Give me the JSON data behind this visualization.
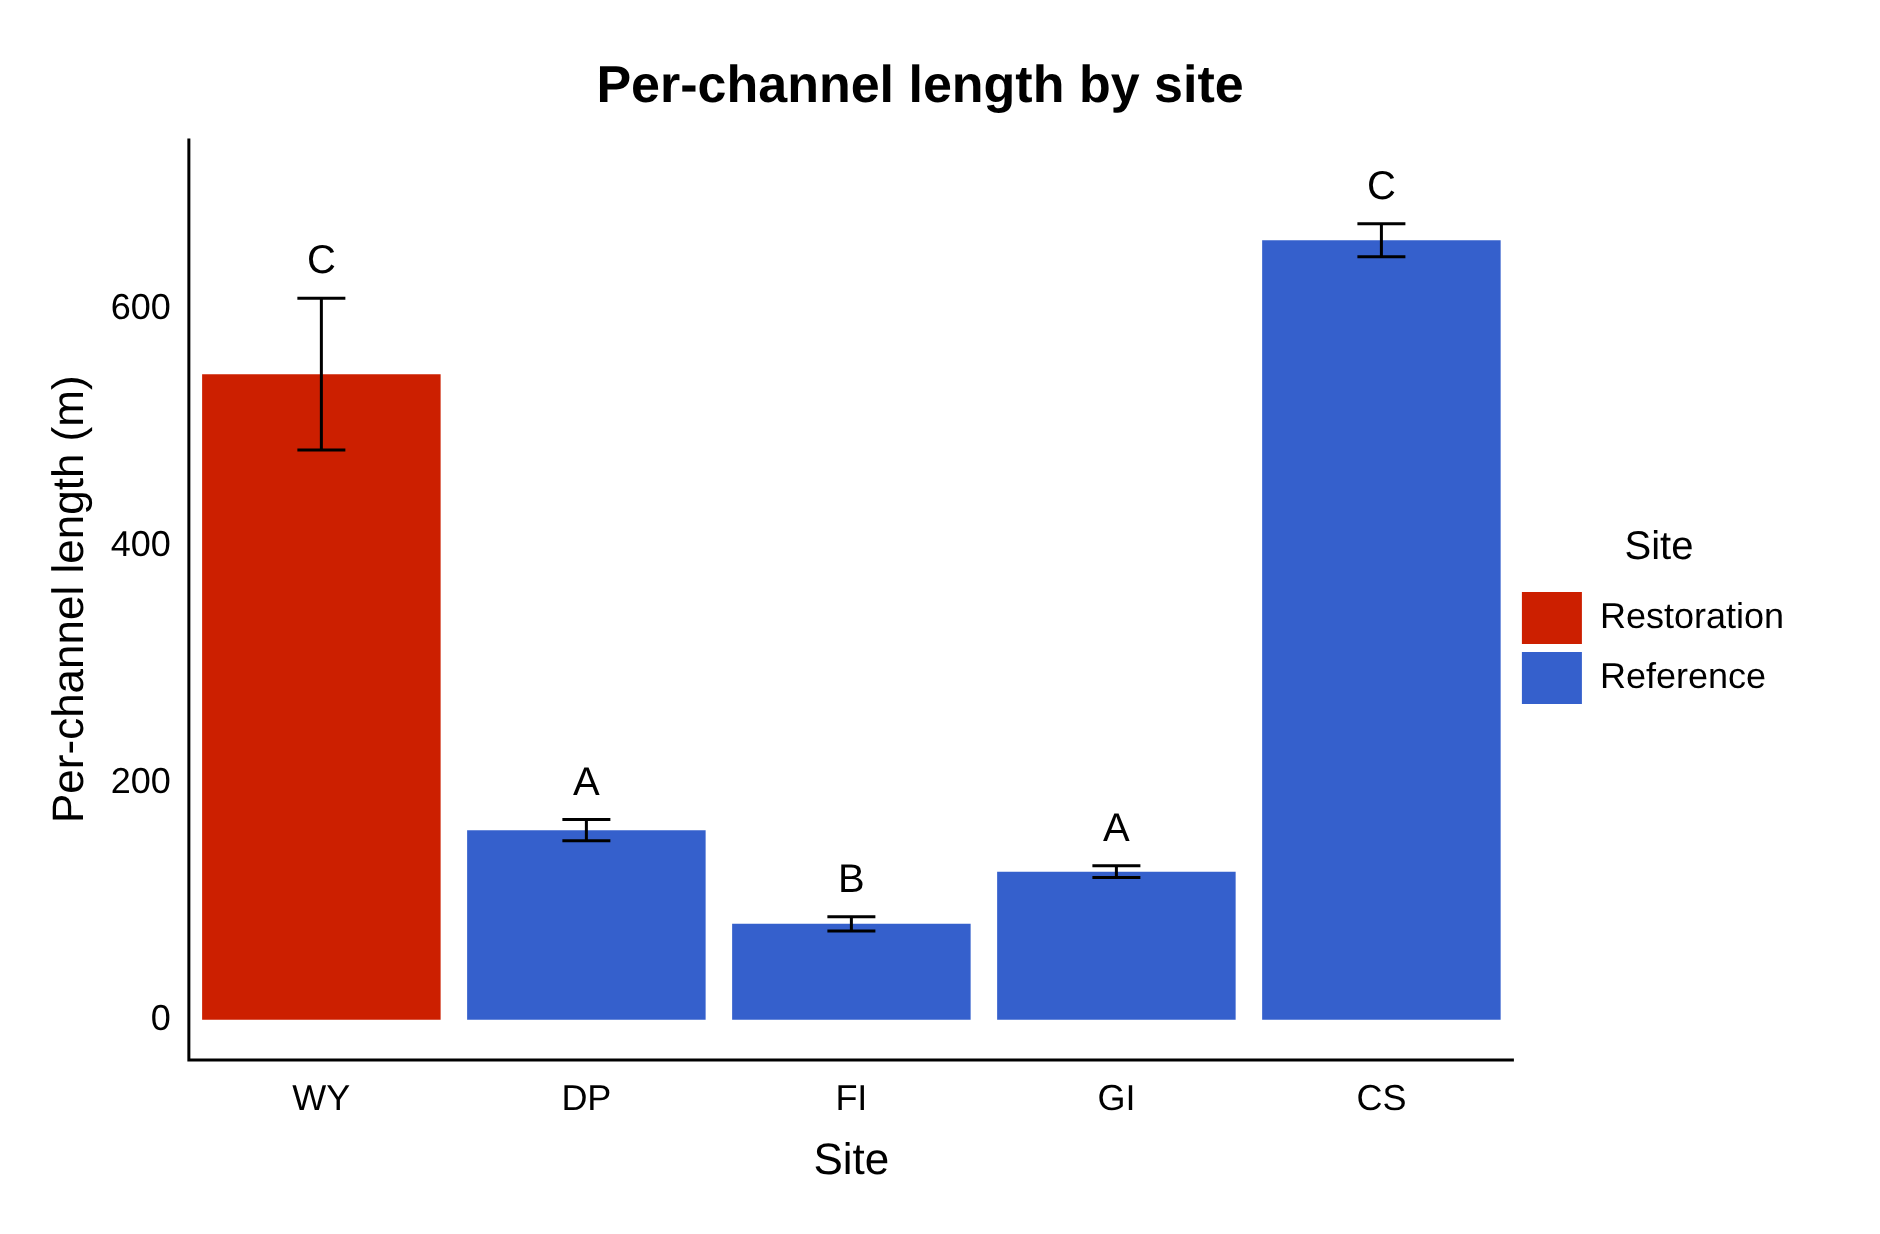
{
  "chart_data": {
    "type": "bar",
    "title": "Per-channel length by site",
    "xlabel": "Site",
    "ylabel": "Per-channel length (m)",
    "legend_title": "Site",
    "categories": [
      "WY",
      "DP",
      "FI",
      "GI",
      "CS"
    ],
    "series": [
      {
        "name": "Restoration",
        "color": "#cc1f00",
        "values": [
          545,
          null,
          null,
          null,
          null
        ],
        "errors": [
          64,
          null,
          null,
          null,
          null
        ]
      },
      {
        "name": "Reference",
        "color": "#3560cc",
        "values": [
          null,
          160,
          81,
          125,
          658
        ],
        "errors": [
          null,
          9,
          6,
          5,
          14
        ]
      }
    ],
    "stacked": true,
    "ylim": [
      -34,
      744
    ],
    "yticks": [
      0,
      200,
      400,
      600
    ],
    "grid": false,
    "legend": "right",
    "annotations": [
      {
        "text": "C",
        "x": "WY",
        "y": 609
      },
      {
        "text": "A",
        "x": "DP",
        "y": 169
      },
      {
        "text": "B",
        "x": "FI",
        "y": 87
      },
      {
        "text": "A",
        "x": "GI",
        "y": 130
      },
      {
        "text": "C",
        "x": "CS",
        "y": 672
      }
    ]
  }
}
